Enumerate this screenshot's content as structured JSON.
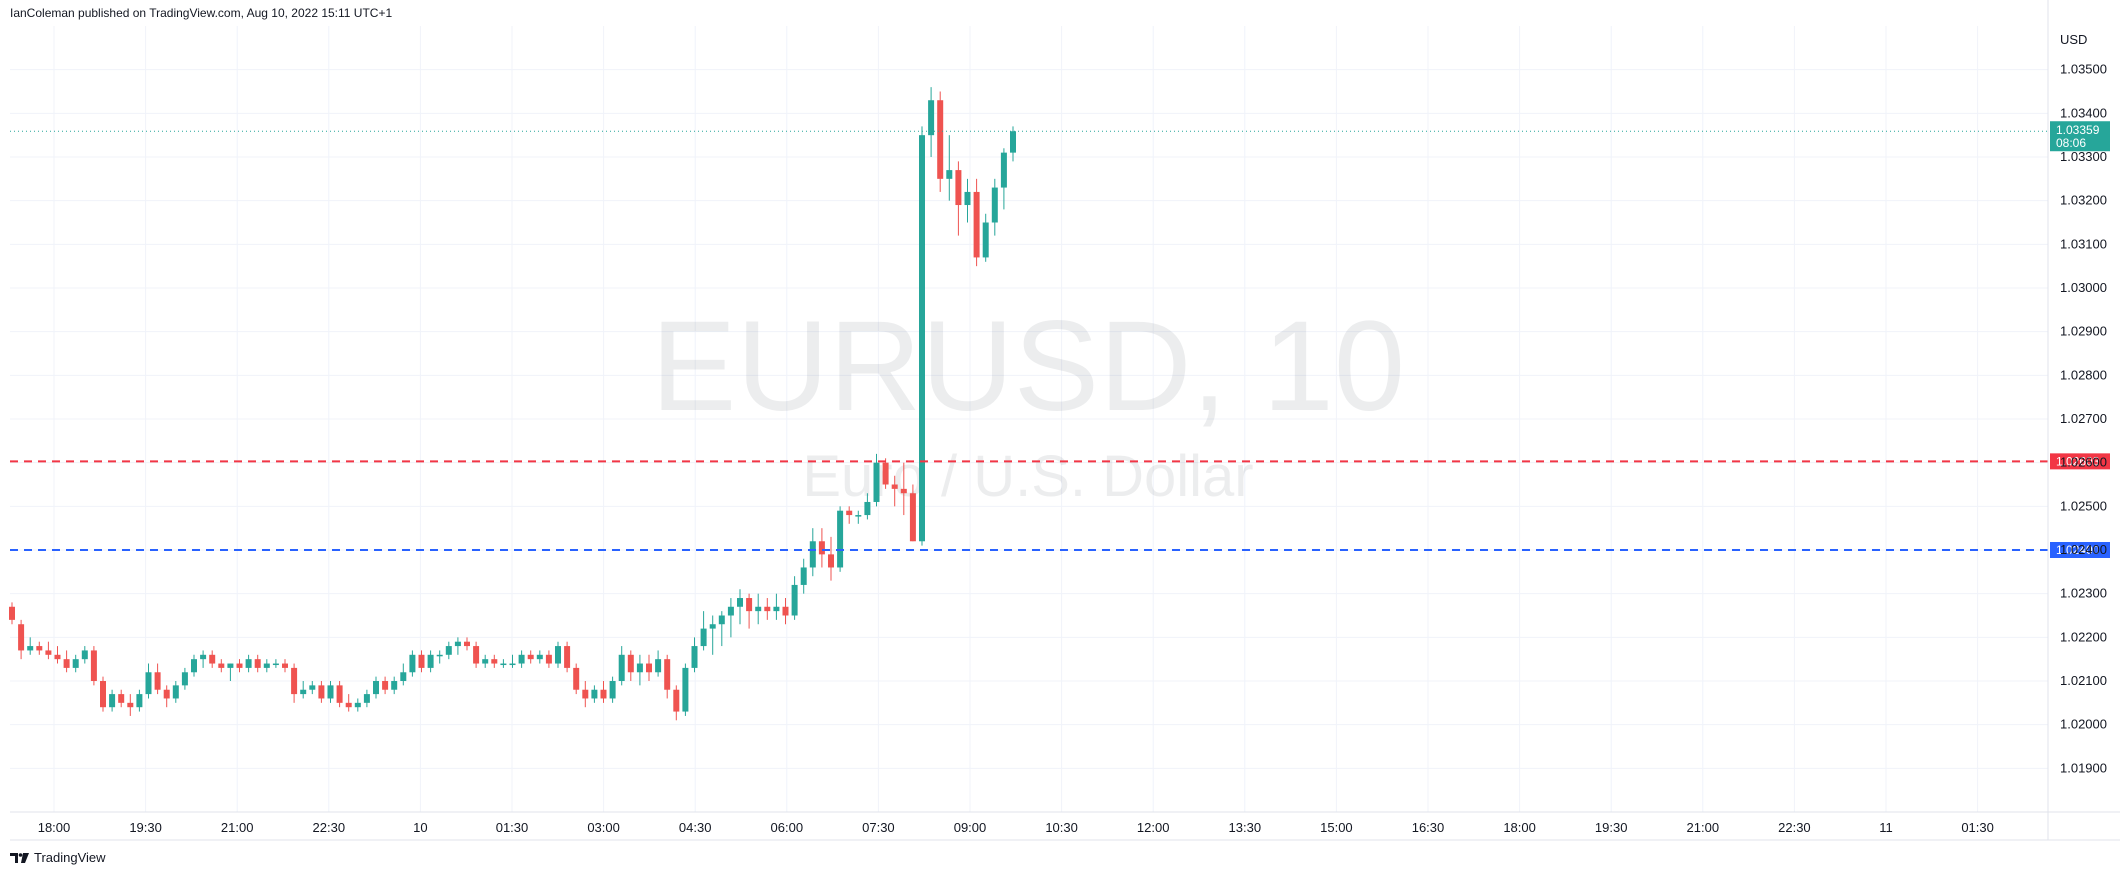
{
  "header": {
    "publisher_text": "IanColeman published on TradingView.com, Aug 10, 2022 15:11 UTC+1"
  },
  "watermark": {
    "symbol": "EURUSD, 10",
    "description": "Euro / U.S. Dollar"
  },
  "footer": {
    "brand": "TradingView",
    "logo_icon": "tradingview-logo-icon"
  },
  "colors": {
    "up": "#26a69a",
    "down": "#ef5350",
    "resistance_line": "#f23645",
    "support_line": "#2962ff",
    "last_price": "#26a69a",
    "grid": "#f0f3fa",
    "border": "#e0e3eb"
  },
  "chart_data": {
    "type": "candlestick",
    "symbol": "EURUSD",
    "interval": "10",
    "currency_label": "USD",
    "ylim": [
      1.018,
      1.036
    ],
    "y_ticks": [
      "1.01900",
      "1.02000",
      "1.02100",
      "1.02200",
      "1.02300",
      "1.02400",
      "1.02500",
      "1.02600",
      "1.02700",
      "1.02800",
      "1.02900",
      "1.03000",
      "1.03100",
      "1.03200",
      "1.03300",
      "1.03400",
      "1.03500"
    ],
    "x_ticks": [
      "18:00",
      "19:30",
      "21:00",
      "22:30",
      "10",
      "01:30",
      "03:00",
      "04:30",
      "06:00",
      "07:30",
      "09:00",
      "10:30",
      "12:00",
      "13:30",
      "15:00",
      "16:30",
      "18:00",
      "19:30",
      "21:00",
      "22:30",
      "11",
      "01:30"
    ],
    "horizontal_lines": [
      {
        "value": 1.02603,
        "label": "1.02603",
        "color": "#f23645",
        "style": "dashed"
      },
      {
        "value": 1.024,
        "label": "1.02400",
        "color": "#2962ff",
        "style": "dashed"
      }
    ],
    "last_price": {
      "value": 1.03359,
      "label": "1.03359",
      "countdown": "08:06"
    },
    "candles": [
      [
        1.0227,
        1.0228,
        1.0223,
        1.0224
      ],
      [
        1.0223,
        1.0224,
        1.0215,
        1.0217
      ],
      [
        1.0217,
        1.022,
        1.0216,
        1.0218
      ],
      [
        1.0218,
        1.0219,
        1.0216,
        1.0217
      ],
      [
        1.0217,
        1.0219,
        1.0215,
        1.0216
      ],
      [
        1.0216,
        1.0218,
        1.0214,
        1.0215
      ],
      [
        1.0215,
        1.0217,
        1.0212,
        1.0213
      ],
      [
        1.0213,
        1.0216,
        1.0212,
        1.0215
      ],
      [
        1.0215,
        1.0218,
        1.0214,
        1.0217
      ],
      [
        1.0217,
        1.0218,
        1.0209,
        1.021
      ],
      [
        1.021,
        1.0211,
        1.0203,
        1.0204
      ],
      [
        1.0204,
        1.0208,
        1.0203,
        1.0207
      ],
      [
        1.0207,
        1.0208,
        1.0204,
        1.0205
      ],
      [
        1.0205,
        1.0207,
        1.0202,
        1.0204
      ],
      [
        1.0204,
        1.0208,
        1.0203,
        1.0207
      ],
      [
        1.0207,
        1.0214,
        1.0206,
        1.0212
      ],
      [
        1.0212,
        1.0214,
        1.0207,
        1.0208
      ],
      [
        1.0208,
        1.0209,
        1.0204,
        1.0206
      ],
      [
        1.0206,
        1.021,
        1.0205,
        1.0209
      ],
      [
        1.0209,
        1.0213,
        1.0208,
        1.0212
      ],
      [
        1.0212,
        1.0216,
        1.0211,
        1.0215
      ],
      [
        1.0215,
        1.0217,
        1.0213,
        1.0216
      ],
      [
        1.0216,
        1.0217,
        1.0213,
        1.0214
      ],
      [
        1.0214,
        1.0215,
        1.0212,
        1.0213
      ],
      [
        1.0213,
        1.0214,
        1.021,
        1.0214
      ],
      [
        1.0214,
        1.0215,
        1.0212,
        1.0213
      ],
      [
        1.0213,
        1.0216,
        1.0212,
        1.0215
      ],
      [
        1.0215,
        1.0216,
        1.0212,
        1.0213
      ],
      [
        1.0213,
        1.0215,
        1.0212,
        1.0214
      ],
      [
        1.0214,
        1.0215,
        1.0213,
        1.0214
      ],
      [
        1.0214,
        1.0215,
        1.0212,
        1.0213
      ],
      [
        1.0213,
        1.0214,
        1.0205,
        1.0207
      ],
      [
        1.0207,
        1.021,
        1.0206,
        1.0208
      ],
      [
        1.0208,
        1.021,
        1.0207,
        1.0209
      ],
      [
        1.0209,
        1.021,
        1.0205,
        1.0206
      ],
      [
        1.0206,
        1.021,
        1.0205,
        1.0209
      ],
      [
        1.0209,
        1.021,
        1.0204,
        1.0205
      ],
      [
        1.0205,
        1.0207,
        1.0203,
        1.0204
      ],
      [
        1.0204,
        1.0206,
        1.0203,
        1.0205
      ],
      [
        1.0205,
        1.0208,
        1.0204,
        1.0207
      ],
      [
        1.0207,
        1.0211,
        1.0206,
        1.021
      ],
      [
        1.021,
        1.0211,
        1.0207,
        1.0208
      ],
      [
        1.0208,
        1.0211,
        1.0207,
        1.021
      ],
      [
        1.021,
        1.0214,
        1.0209,
        1.0212
      ],
      [
        1.0212,
        1.0217,
        1.0211,
        1.0216
      ],
      [
        1.0216,
        1.0217,
        1.0212,
        1.0213
      ],
      [
        1.0213,
        1.0217,
        1.0212,
        1.0216
      ],
      [
        1.0216,
        1.0217,
        1.0214,
        1.0216
      ],
      [
        1.0216,
        1.0219,
        1.0215,
        1.0218
      ],
      [
        1.0218,
        1.022,
        1.0216,
        1.0219
      ],
      [
        1.0219,
        1.022,
        1.0217,
        1.0218
      ],
      [
        1.0218,
        1.0219,
        1.0213,
        1.0214
      ],
      [
        1.0214,
        1.0216,
        1.0213,
        1.0215
      ],
      [
        1.0215,
        1.0216,
        1.0213,
        1.0214
      ],
      [
        1.0214,
        1.0215,
        1.0213,
        1.0214
      ],
      [
        1.0214,
        1.0216,
        1.0213,
        1.0214
      ],
      [
        1.0214,
        1.0217,
        1.0213,
        1.0216
      ],
      [
        1.0216,
        1.0217,
        1.0214,
        1.0215
      ],
      [
        1.0215,
        1.0217,
        1.0214,
        1.0216
      ],
      [
        1.0216,
        1.0217,
        1.0213,
        1.0214
      ],
      [
        1.0214,
        1.0219,
        1.0213,
        1.0218
      ],
      [
        1.0218,
        1.0219,
        1.0212,
        1.0213
      ],
      [
        1.0213,
        1.0214,
        1.0207,
        1.0208
      ],
      [
        1.0208,
        1.021,
        1.0204,
        1.0206
      ],
      [
        1.0206,
        1.0209,
        1.0205,
        1.0208
      ],
      [
        1.0208,
        1.021,
        1.0205,
        1.0206
      ],
      [
        1.0206,
        1.0211,
        1.0205,
        1.021
      ],
      [
        1.021,
        1.0218,
        1.0209,
        1.0216
      ],
      [
        1.0216,
        1.0217,
        1.021,
        1.0212
      ],
      [
        1.0212,
        1.0216,
        1.0209,
        1.0214
      ],
      [
        1.0214,
        1.0216,
        1.021,
        1.0212
      ],
      [
        1.0212,
        1.0217,
        1.0211,
        1.0215
      ],
      [
        1.0215,
        1.0216,
        1.0206,
        1.0208
      ],
      [
        1.0208,
        1.0209,
        1.0201,
        1.0203
      ],
      [
        1.0203,
        1.0214,
        1.0202,
        1.0213
      ],
      [
        1.0213,
        1.022,
        1.0212,
        1.0218
      ],
      [
        1.0218,
        1.0226,
        1.0217,
        1.0222
      ],
      [
        1.0222,
        1.0225,
        1.0216,
        1.0223
      ],
      [
        1.0223,
        1.0226,
        1.0218,
        1.0225
      ],
      [
        1.0225,
        1.0229,
        1.022,
        1.0227
      ],
      [
        1.0227,
        1.0231,
        1.0223,
        1.0229
      ],
      [
        1.0229,
        1.023,
        1.0222,
        1.0226
      ],
      [
        1.0226,
        1.023,
        1.0223,
        1.0227
      ],
      [
        1.0227,
        1.0229,
        1.0224,
        1.0226
      ],
      [
        1.0226,
        1.023,
        1.0224,
        1.0227
      ],
      [
        1.0227,
        1.0229,
        1.0223,
        1.0225
      ],
      [
        1.0225,
        1.0234,
        1.0224,
        1.0232
      ],
      [
        1.0232,
        1.0238,
        1.023,
        1.0236
      ],
      [
        1.0236,
        1.0245,
        1.0234,
        1.0242
      ],
      [
        1.0242,
        1.0245,
        1.0236,
        1.0239
      ],
      [
        1.0239,
        1.0243,
        1.0233,
        1.0236
      ],
      [
        1.0236,
        1.025,
        1.0235,
        1.0249
      ],
      [
        1.0249,
        1.025,
        1.0246,
        1.0248
      ],
      [
        1.0248,
        1.0249,
        1.0246,
        1.0248
      ],
      [
        1.0248,
        1.0253,
        1.0247,
        1.0251
      ],
      [
        1.0251,
        1.0262,
        1.025,
        1.026
      ],
      [
        1.026,
        1.0261,
        1.0254,
        1.0255
      ],
      [
        1.0255,
        1.0257,
        1.025,
        1.0254
      ],
      [
        1.0254,
        1.026,
        1.0248,
        1.0253
      ],
      [
        1.0253,
        1.0255,
        1.0242,
        1.0242
      ],
      [
        1.0242,
        1.0337,
        1.0241,
        1.0335
      ],
      [
        1.0335,
        1.0346,
        1.033,
        1.0343
      ],
      [
        1.0343,
        1.0345,
        1.0322,
        1.0325
      ],
      [
        1.0325,
        1.0335,
        1.032,
        1.0327
      ],
      [
        1.0327,
        1.0329,
        1.0312,
        1.0319
      ],
      [
        1.0319,
        1.0325,
        1.0315,
        1.0322
      ],
      [
        1.0322,
        1.0325,
        1.0305,
        1.0307
      ],
      [
        1.0307,
        1.0317,
        1.0306,
        1.0315
      ],
      [
        1.0315,
        1.0325,
        1.0312,
        1.0323
      ],
      [
        1.0323,
        1.0332,
        1.0318,
        1.0331
      ],
      [
        1.0331,
        1.0337,
        1.0329,
        1.03359
      ]
    ]
  }
}
